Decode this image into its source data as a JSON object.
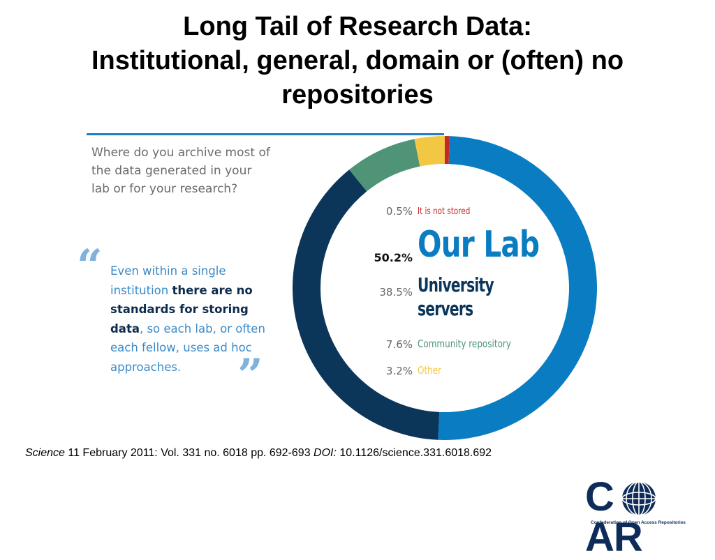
{
  "slide": {
    "title_line1": "Long Tail of Research Data:",
    "title_line2": "Institutional, general, domain or (often) no",
    "title_line3": "repositories",
    "question_line1": "Where do you archive most of",
    "question_line2": "the data generated in your",
    "question_line3": "lab or for your research?",
    "quote": {
      "part1": "Even within a single institution ",
      "part2": "there are no standards for storing data",
      "part3": ", so each lab, or often each fellow, uses ad hoc approaches.",
      "open_mark": "“",
      "close_mark": "”"
    },
    "citation": {
      "journal": "Science",
      "detail": " 11 February 2011: Vol. 331 no. 6018 pp. 692-693 ",
      "doi_label": "DOI:",
      "doi_value": " 10.1126/science.331.6018.692"
    },
    "logo": {
      "letter_c": "C",
      "letters_ar": "AR",
      "subtitle": "Confederation of Open Access Repositories",
      "color": "#0d2c5a"
    }
  },
  "chart_data": {
    "type": "pie",
    "donut": true,
    "title": "",
    "categories": [
      "It is not stored",
      "Our Lab",
      "University servers",
      "Community repository",
      "Other"
    ],
    "values": [
      0.5,
      50.2,
      38.5,
      7.6,
      3.2
    ],
    "labels": [
      "0.5%",
      "50.2%",
      "38.5%",
      "7.6%",
      "3.2%"
    ],
    "colors": [
      "#c62828",
      "#0a7cc1",
      "#0b3559",
      "#4f9477",
      "#f2c744"
    ],
    "legend_placement": "inside"
  }
}
